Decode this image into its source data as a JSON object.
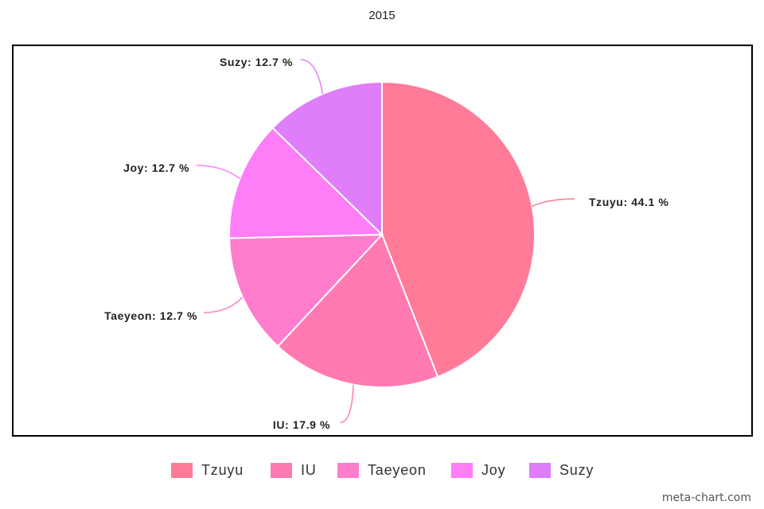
{
  "chart_data": {
    "type": "pie",
    "title": "2015",
    "categories": [
      "Tzuyu",
      "IU",
      "Taeyeon",
      "Joy",
      "Suzy"
    ],
    "values": [
      44.1,
      17.9,
      12.7,
      12.7,
      12.7
    ],
    "value_labels": [
      "44.1 %",
      "17.9 %",
      "12.7 %",
      "12.7 %",
      "12.7 %"
    ],
    "colors": [
      "#ff7b98",
      "#ff7ab0",
      "#ff7dcc",
      "#ff7df7",
      "#df7dfb"
    ],
    "start_angle_degrees": 0,
    "direction": "clockwise",
    "legend_position": "bottom"
  },
  "watermark": "meta-chart.com"
}
